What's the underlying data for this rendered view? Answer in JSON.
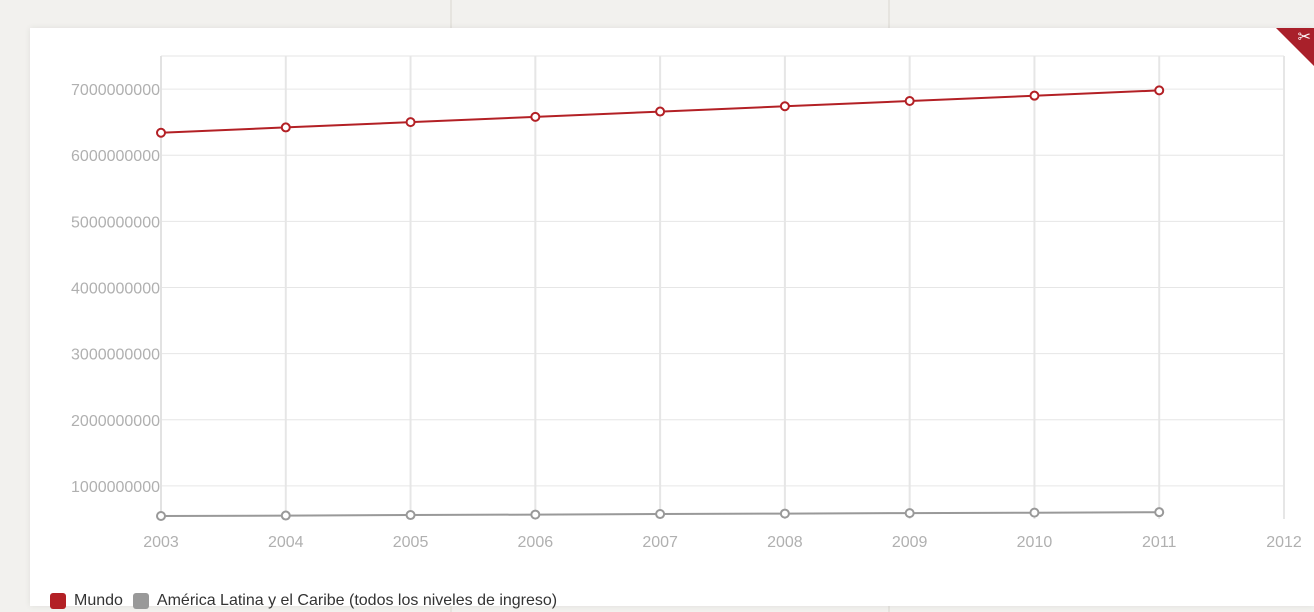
{
  "colors": {
    "mundo": "#b32025",
    "latam": "#999999",
    "grid": "#e6e6e6",
    "accent": "#a9202a"
  },
  "corner_icon": "scissors-icon",
  "chart_data": {
    "type": "line",
    "x": [
      2003,
      2004,
      2005,
      2006,
      2007,
      2008,
      2009,
      2010,
      2011
    ],
    "xlim": [
      2003,
      2012
    ],
    "x_ticks": [
      "2003",
      "2004",
      "2005",
      "2006",
      "2007",
      "2008",
      "2009",
      "2010",
      "2011",
      "2012"
    ],
    "ylim": [
      500000000,
      7500000000
    ],
    "y_ticks": [
      "1000000000",
      "2000000000",
      "3000000000",
      "4000000000",
      "5000000000",
      "6000000000",
      "7000000000"
    ],
    "grid": true,
    "legend_placement": "bottom-left",
    "series": [
      {
        "name": "Mundo",
        "color": "#b32025",
        "values": [
          6340000000,
          6420000000,
          6500000000,
          6580000000,
          6660000000,
          6740000000,
          6820000000,
          6900000000,
          6980000000
        ]
      },
      {
        "name": "América Latina y el Caribe (todos los niveles de ingreso)",
        "color": "#999999",
        "values": [
          545000000,
          552000000,
          560000000,
          567000000,
          575000000,
          582000000,
          589000000,
          596000000,
          603000000
        ]
      }
    ]
  }
}
